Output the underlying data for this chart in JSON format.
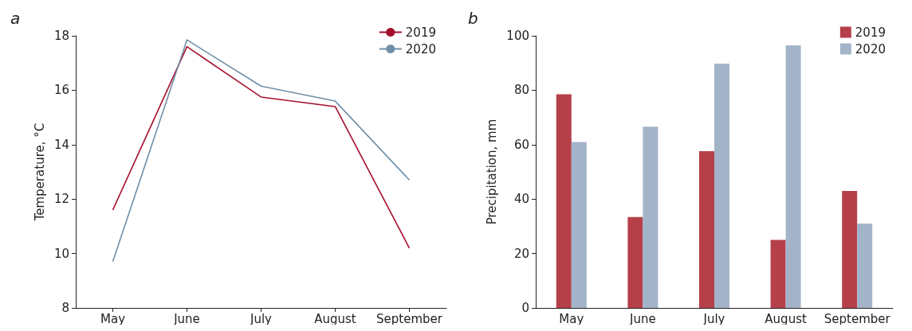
{
  "chart_data": [
    {
      "type": "line",
      "title": "a",
      "ylabel": "Temperature, °C",
      "categories": [
        "May",
        "June",
        "July",
        "August",
        "September"
      ],
      "ylim": [
        8,
        18
      ],
      "yticks": [
        8,
        10,
        12,
        14,
        16,
        18
      ],
      "legend": "top right",
      "marker": "none",
      "series": [
        {
          "name": "2019",
          "color": "#a50f2d",
          "values": [
            11.6,
            17.6,
            15.75,
            15.4,
            10.2
          ]
        },
        {
          "name": "2020",
          "color": "#6f8fa8",
          "values": [
            9.7,
            17.85,
            16.15,
            15.6,
            12.7
          ]
        }
      ]
    },
    {
      "type": "bar",
      "title": "b",
      "ylabel": "Precipitation, mm",
      "categories": [
        "May",
        "June",
        "July",
        "August",
        "September"
      ],
      "ylim": [
        0,
        100
      ],
      "yticks": [
        0,
        20,
        40,
        60,
        80,
        100
      ],
      "legend": "top right",
      "series": [
        {
          "name": "2019",
          "color": "#b5404a",
          "values": [
            78.5,
            33.4,
            57.6,
            25,
            43
          ]
        },
        {
          "name": "2020",
          "color": "#a3b4c8",
          "values": [
            61,
            66.6,
            89.8,
            96.5,
            31
          ]
        }
      ]
    }
  ]
}
